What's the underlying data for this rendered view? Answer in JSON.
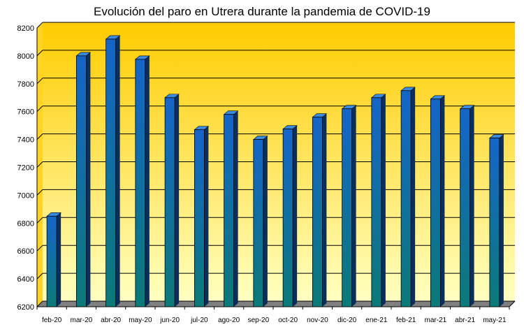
{
  "chart_data": {
    "type": "bar",
    "title": "Evolución del paro en Utrera durante la pandemia de COVID-19",
    "xlabel": "",
    "ylabel": "",
    "categories": [
      "feb-20",
      "mar-20",
      "abr-20",
      "may-20",
      "jun-20",
      "jul-20",
      "ago-20",
      "sep-20",
      "oct-20",
      "nov-20",
      "dic-20",
      "ene-21",
      "feb-21",
      "mar-21",
      "abr-21",
      "may-21"
    ],
    "values": [
      6850,
      8000,
      8120,
      7975,
      7700,
      7470,
      7580,
      7400,
      7475,
      7560,
      7620,
      7700,
      7750,
      7690,
      7620,
      7410
    ],
    "yticks": [
      6200,
      6400,
      6600,
      6800,
      7000,
      7200,
      7400,
      7600,
      7800,
      8000,
      8200
    ],
    "ylim": [
      6200,
      8200
    ],
    "grid": true,
    "legend": "none",
    "colors": {
      "bar_front_top": "#1565c8",
      "bar_front_bottom": "#0b7a78",
      "bar_side": "#0a2f5e",
      "bar_top": "#3a8ae0",
      "wall_top": "#ffcc00",
      "wall_bottom": "#ffffc0",
      "floor": "#808080",
      "gridline": "#000000"
    }
  }
}
